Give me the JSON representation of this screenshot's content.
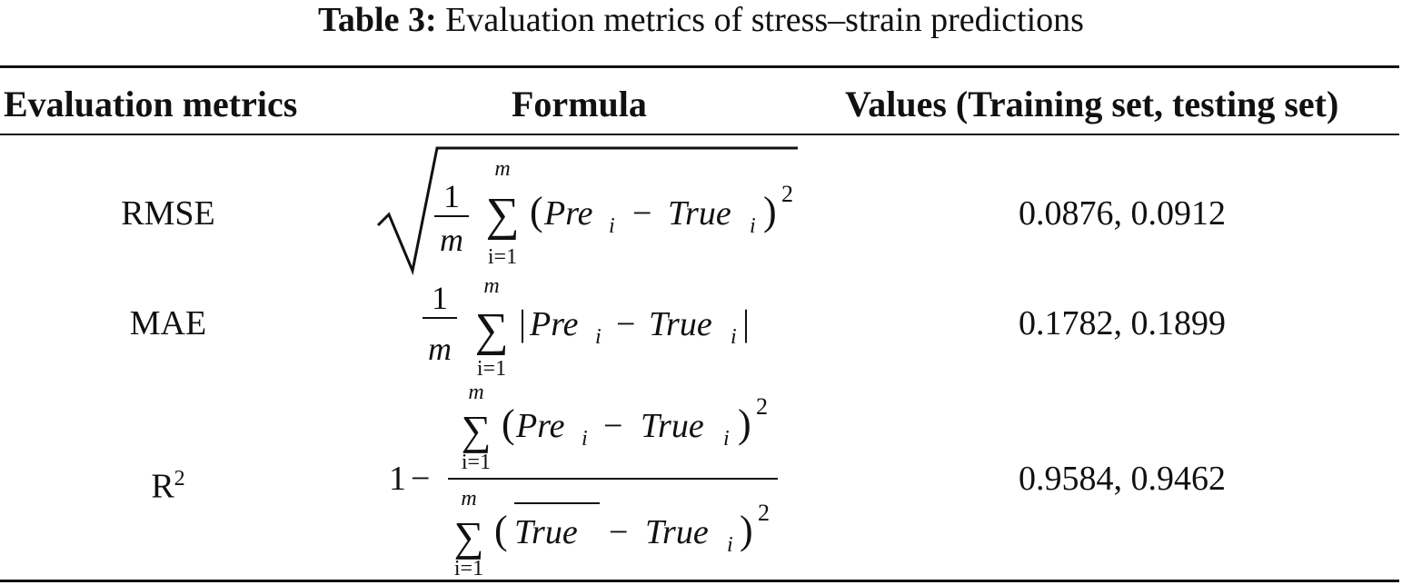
{
  "caption": {
    "label": "Table 3:",
    "text": "Evaluation metrics of stress–strain predictions"
  },
  "headers": {
    "metric": "Evaluation metrics",
    "formula": "Formula",
    "values": "Values (Training set, testing set)"
  },
  "rows": [
    {
      "metric": "RMSE",
      "values": "0.0876, 0.0912",
      "formula": {
        "one": "1",
        "m": "m",
        "sum": "∑",
        "sub": "i=1",
        "sup": "m",
        "pre": "Pre",
        "true": "True",
        "i": "i",
        "minus": "−",
        "exp": "2"
      }
    },
    {
      "metric": "MAE",
      "values": "0.1782, 0.1899",
      "formula": {
        "one": "1",
        "m": "m",
        "sum": "∑",
        "sub": "i=1",
        "sup": "m",
        "pre": "Pre",
        "true": "True",
        "i": "i",
        "minus": "−",
        "bar": "|"
      }
    },
    {
      "metric": "R",
      "metric_sup": "2",
      "values": "0.9584, 0.9462",
      "formula": {
        "one": "1",
        "minus": "−",
        "sum": "∑",
        "sub": "i=1",
        "sup": "m",
        "pre": "Pre",
        "true": "True",
        "i": "i",
        "exp": "2",
        "truebar": "True"
      }
    }
  ]
}
